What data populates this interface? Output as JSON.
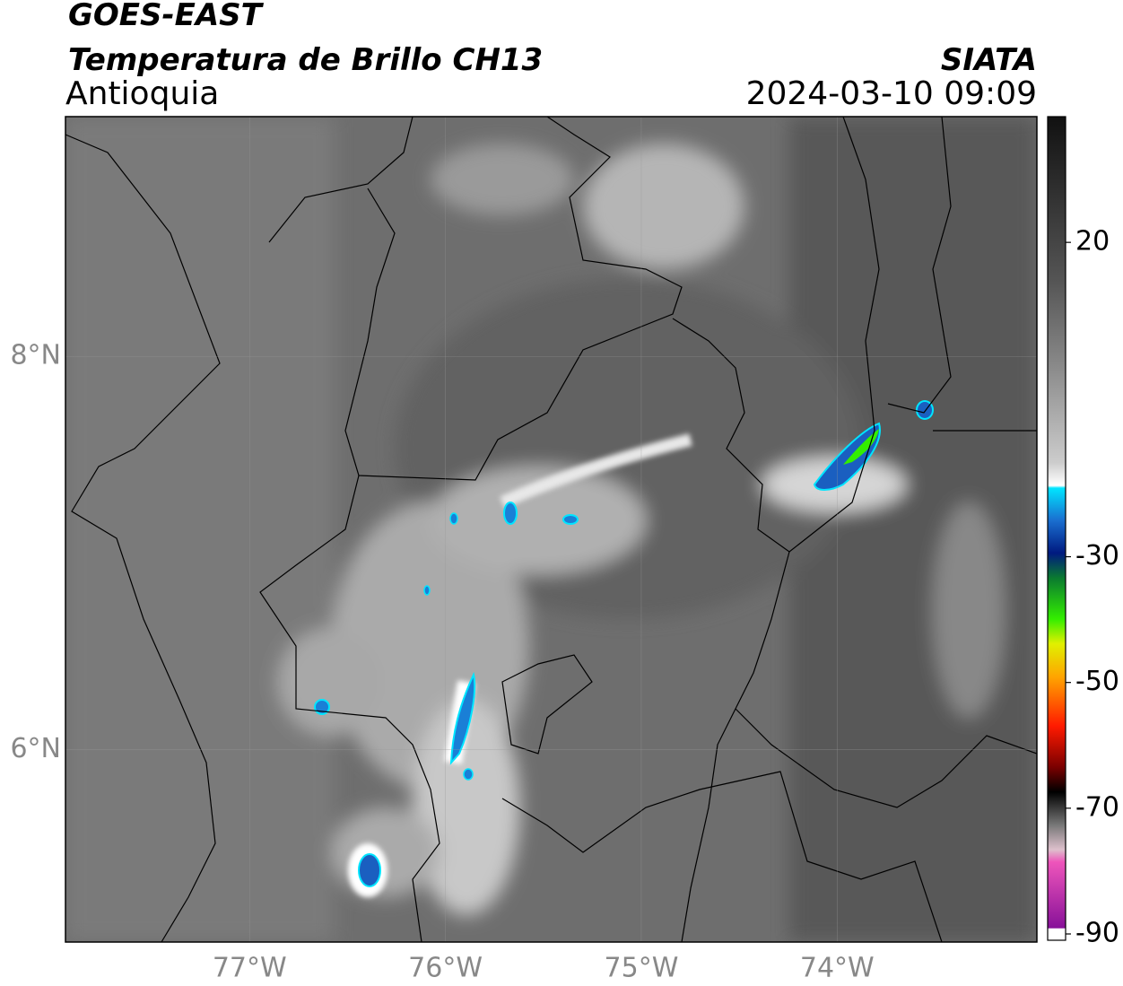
{
  "header": {
    "title": "GOES-EAST",
    "subtitle": "Temperatura de Brillo CH13",
    "region": "Antioquia",
    "source": "SIATA",
    "timestamp": "2024-03-10 09:09"
  },
  "map": {
    "xlim": [
      -77.94,
      -72.98
    ],
    "ylim": [
      5.02,
      9.22
    ],
    "xticks": [
      {
        "value": -77,
        "label": "77°W"
      },
      {
        "value": -76,
        "label": "76°W"
      },
      {
        "value": -75,
        "label": "75°W"
      },
      {
        "value": -74,
        "label": "74°W"
      }
    ],
    "yticks": [
      {
        "value": 6,
        "label": "6°N"
      },
      {
        "value": 8,
        "label": "8°N"
      }
    ],
    "grid": true
  },
  "colorbar": {
    "lim": [
      -91,
      40
    ],
    "ticks": [
      20,
      -30,
      -50,
      -70,
      -90
    ]
  }
}
